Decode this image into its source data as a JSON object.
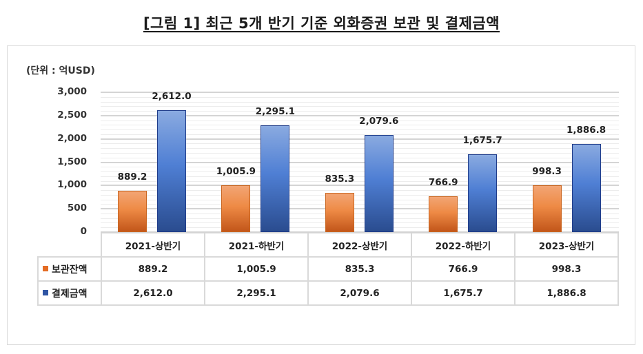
{
  "title": "[그림 1] 최근 5개 반기 기준 외화증권 보관 및 결제금액",
  "unit_label": "(단위 : 억USD)",
  "colors": {
    "series1": "#ee8a45",
    "series2": "#4472c4",
    "grid": "#d4d4d4"
  },
  "yaxis": {
    "ticks": [
      "3,000",
      "2,500",
      "2,000",
      "1,500",
      "1,000",
      "500",
      "0"
    ]
  },
  "table": {
    "headers": [
      "2021-상반기",
      "2021-하반기",
      "2022-상반기",
      "2022-하반기",
      "2023-상반기"
    ],
    "rows": [
      {
        "label": "보관잔액",
        "values": [
          "889.2",
          "1,005.9",
          "835.3",
          "766.9",
          "998.3"
        ]
      },
      {
        "label": "결제금액",
        "values": [
          "2,612.0",
          "2,295.1",
          "2,079.6",
          "1,675.7",
          "1,886.8"
        ]
      }
    ]
  },
  "chart_data": {
    "type": "bar",
    "title": "[그림 1] 최근 5개 반기 기준 외화증권 보관 및 결제금액",
    "xlabel": "",
    "ylabel": "(단위 : 억USD)",
    "categories": [
      "2021-상반기",
      "2021-하반기",
      "2022-상반기",
      "2022-하반기",
      "2023-상반기"
    ],
    "series": [
      {
        "name": "보관잔액",
        "values": [
          889.2,
          1005.9,
          835.3,
          766.9,
          998.3
        ],
        "color": "#ee8a45"
      },
      {
        "name": "결제금액",
        "values": [
          2612.0,
          2295.1,
          2079.6,
          1675.7,
          1886.8
        ],
        "color": "#4472c4"
      }
    ],
    "ylim": [
      0,
      3000
    ],
    "yticks": [
      0,
      500,
      1000,
      1500,
      2000,
      2500,
      3000
    ],
    "grid": true,
    "data_labels": true,
    "legend": "data-table-below"
  }
}
